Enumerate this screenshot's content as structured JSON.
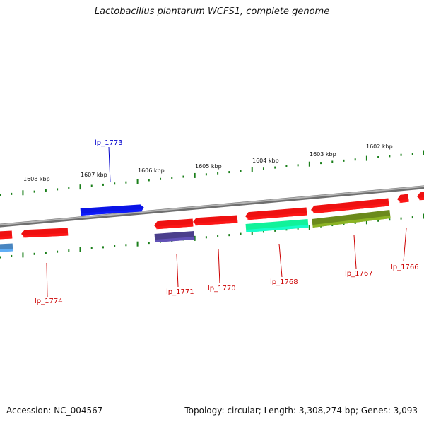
{
  "title": "Lactobacillus plantarum WCFS1, complete genome",
  "footer": {
    "accession": "Accession: NC_004567",
    "stats": "Topology: circular; Length: 3,308,274 bp; Genes: 3,093"
  },
  "scale_labels": [
    "1608 kbp",
    "1607 kbp",
    "1606 kbp",
    "1605 kbp",
    "1604 kbp",
    "1603 kbp",
    "1602 kbp"
  ],
  "gene_labels": [
    "lp_1773",
    "lp_1774",
    "lp_1771",
    "lp_1770",
    "lp_1768",
    "lp_1767",
    "lp_1766"
  ],
  "colors": {
    "red_gene": "#ee1111",
    "blue_gene": "#0a14e6",
    "purple_gene": "#4b3f8c",
    "cyan_gene": "#11f29a",
    "olive_gene": "#6b8a1c",
    "steel_gene": "#4a86c0",
    "backbone": "#888888",
    "ticks": "#1a7f1a",
    "red_label": "#cc0000",
    "blue_label": "#0000cc"
  }
}
